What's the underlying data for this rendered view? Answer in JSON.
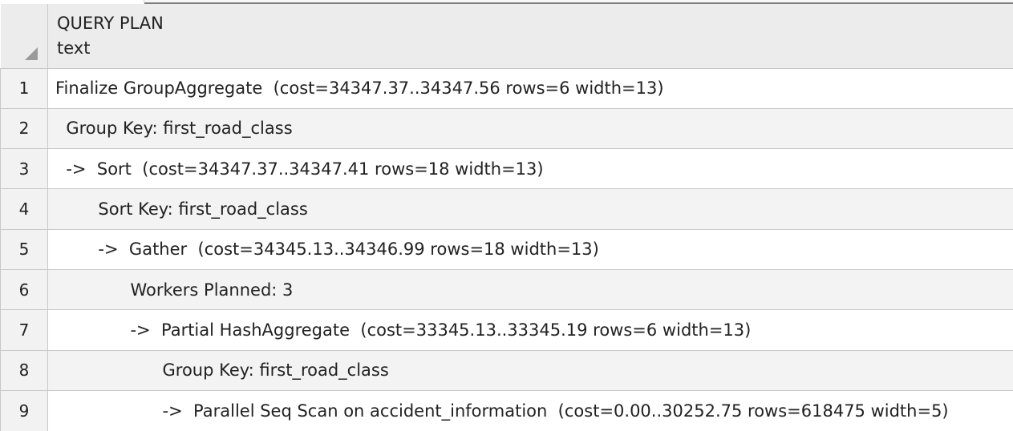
{
  "grid": {
    "column": {
      "name": "QUERY PLAN",
      "type": "text"
    },
    "rows": [
      {
        "num": "1",
        "text": "Finalize GroupAggregate  (cost=34347.37..34347.56 rows=6 width=13)"
      },
      {
        "num": "2",
        "text": "  Group Key: first_road_class"
      },
      {
        "num": "3",
        "text": "  ->  Sort  (cost=34347.37..34347.41 rows=18 width=13)"
      },
      {
        "num": "4",
        "text": "        Sort Key: first_road_class"
      },
      {
        "num": "5",
        "text": "        ->  Gather  (cost=34345.13..34346.99 rows=18 width=13)"
      },
      {
        "num": "6",
        "text": "              Workers Planned: 3"
      },
      {
        "num": "7",
        "text": "              ->  Partial HashAggregate  (cost=33345.13..33345.19 rows=6 width=13)"
      },
      {
        "num": "8",
        "text": "                    Group Key: first_road_class"
      },
      {
        "num": "9",
        "text": "                    ->  Parallel Seq Scan on accident_information  (cost=0.00..30252.75 rows=618475 width=5)"
      }
    ]
  },
  "icons": {
    "corner": "select-all-triangle-icon"
  },
  "colors": {
    "header_bg": "#ececec",
    "row_alt_bg": "#f3f3f3",
    "grid_line": "#c9c9c9"
  }
}
